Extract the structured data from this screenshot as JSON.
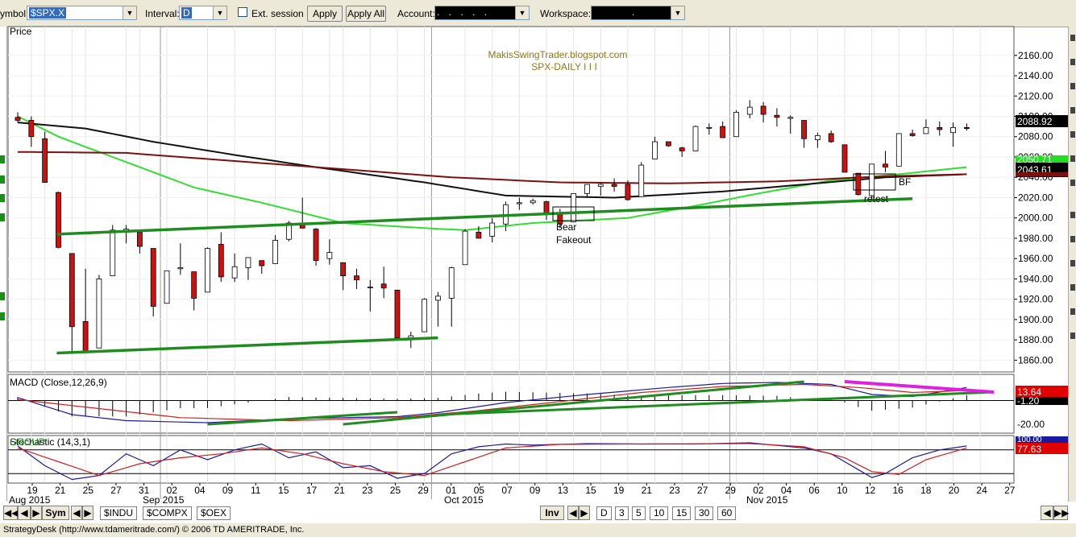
{
  "toolbar": {
    "symbol_label": "ymbol:",
    "symbol_value": "$SPX.X",
    "interval_label": "Interval:",
    "interval_value": "D",
    "ext_session_label": "Ext. session",
    "apply_label": "Apply",
    "apply_all_label": "Apply All",
    "account_label": "Account:",
    "account_value": ". . . . .",
    "workspace_label": "Workspace:",
    "workspace_value": "."
  },
  "chart": {
    "price_panel_title": "Price",
    "watermark_line1": "MakisSwingTrader.blogspot.com",
    "watermark_line2": "SPX-DAILY  I I I",
    "annotation_bear": "Bear",
    "annotation_fakeout": "Fakeout",
    "annotation_bf": "BF",
    "annotation_retest": "retest",
    "last_price": "2088.92",
    "ma_price": "2043.61",
    "ma_price_hidden": "2050.71",
    "macd_title": "MACD (Close,12,26,9)",
    "macd_value1": "13.64",
    "macd_value2": "-1.20",
    "macd_scale_low": "-20.00",
    "stoch_title": "Stochastic (14,3,1)",
    "stoch_overlap": "GROUP",
    "stoch_value1": "100.00",
    "stoch_value2": "77.63",
    "colors": {
      "sma_short": "#33dd33",
      "sma_long": "#111111",
      "ema": "#7a1010",
      "trend": "#1e8c1e",
      "divergence": "#e020e0",
      "macd": "#1a1aa0",
      "signal": "#cc2020",
      "candle_up": "#ffffff",
      "candle_down": "#cc1111",
      "watermark": "#8a7b1a"
    }
  },
  "chart_data": {
    "type": "line",
    "title": "SPX-DAILY",
    "dates": [
      "2015-08-18",
      "2015-08-19",
      "2015-08-20",
      "2015-08-21",
      "2015-08-24",
      "2015-08-25",
      "2015-08-26",
      "2015-08-27",
      "2015-08-28",
      "2015-08-31",
      "2015-09-01",
      "2015-09-02",
      "2015-09-03",
      "2015-09-04",
      "2015-09-08",
      "2015-09-09",
      "2015-09-10",
      "2015-09-11",
      "2015-09-14",
      "2015-09-15",
      "2015-09-16",
      "2015-09-17",
      "2015-09-18",
      "2015-09-21",
      "2015-09-22",
      "2015-09-23",
      "2015-09-24",
      "2015-09-25",
      "2015-09-28",
      "2015-09-29",
      "2015-09-30",
      "2015-10-01",
      "2015-10-02",
      "2015-10-05",
      "2015-10-06",
      "2015-10-07",
      "2015-10-08",
      "2015-10-09",
      "2015-10-12",
      "2015-10-13",
      "2015-10-14",
      "2015-10-15",
      "2015-10-16",
      "2015-10-19",
      "2015-10-20",
      "2015-10-21",
      "2015-10-22",
      "2015-10-23",
      "2015-10-26",
      "2015-10-27",
      "2015-10-28",
      "2015-10-29",
      "2015-10-30",
      "2015-11-02",
      "2015-11-03",
      "2015-11-04",
      "2015-11-05",
      "2015-11-06",
      "2015-11-09",
      "2015-11-10",
      "2015-11-11",
      "2015-11-12",
      "2015-11-13",
      "2015-11-16",
      "2015-11-17",
      "2015-11-18",
      "2015-11-19",
      "2015-11-20",
      "2015-11-23",
      "2015-11-24",
      "2015-11-25"
    ],
    "ohlc": [
      [
        2099,
        2104,
        2094,
        2096
      ],
      [
        2096,
        2100,
        2070,
        2080
      ],
      [
        2078,
        2085,
        2035,
        2035
      ],
      [
        2025,
        2026,
        1970,
        1971
      ],
      [
        1965,
        1965,
        1867,
        1893
      ],
      [
        1898,
        1950,
        1867,
        1868
      ],
      [
        1872,
        1944,
        1872,
        1940
      ],
      [
        1943,
        1993,
        1943,
        1988
      ],
      [
        1986,
        1993,
        1975,
        1989
      ],
      [
        1986,
        1988,
        1965,
        1972
      ],
      [
        1970,
        1970,
        1903,
        1913
      ],
      [
        1916,
        1948,
        1916,
        1948
      ],
      [
        1950,
        1975,
        1944,
        1951
      ],
      [
        1947,
        1947,
        1909,
        1921
      ],
      [
        1927,
        1971,
        1927,
        1970
      ],
      [
        1974,
        1986,
        1937,
        1942
      ],
      [
        1941,
        1965,
        1937,
        1952
      ],
      [
        1951,
        1961,
        1939,
        1961
      ],
      [
        1958,
        1958,
        1945,
        1953
      ],
      [
        1955,
        1983,
        1955,
        1978
      ],
      [
        1979,
        1997,
        1977,
        1995
      ],
      [
        1995,
        2020,
        1990,
        1990
      ],
      [
        1989,
        1990,
        1953,
        1958
      ],
      [
        1960,
        1979,
        1954,
        1966
      ],
      [
        1956,
        1956,
        1929,
        1943
      ],
      [
        1943,
        1950,
        1930,
        1939
      ],
      [
        1932,
        1939,
        1908,
        1932
      ],
      [
        1935,
        1952,
        1921,
        1931
      ],
      [
        1929,
        1929,
        1880,
        1882
      ],
      [
        1882,
        1888,
        1872,
        1884
      ],
      [
        1888,
        1921,
        1888,
        1920
      ],
      [
        1919,
        1927,
        1893,
        1923
      ],
      [
        1921,
        1952,
        1893,
        1951
      ],
      [
        1954,
        1989,
        1954,
        1987
      ],
      [
        1986,
        1992,
        1980,
        1980
      ],
      [
        1982,
        2000,
        1976,
        1995
      ],
      [
        1994,
        2016,
        1987,
        2013
      ],
      [
        2014,
        2020,
        2008,
        2015
      ],
      [
        2015,
        2019,
        2013,
        2017
      ],
      [
        2016,
        2017,
        1998,
        2004
      ],
      [
        2004,
        2009,
        1990,
        1994
      ],
      [
        1996,
        2024,
        1996,
        2024
      ],
      [
        2024,
        2033,
        2020,
        2033
      ],
      [
        2031,
        2034,
        2022,
        2033
      ],
      [
        2033,
        2039,
        2026,
        2031
      ],
      [
        2033,
        2037,
        2017,
        2018
      ],
      [
        2021,
        2055,
        2021,
        2052
      ],
      [
        2058,
        2080,
        2058,
        2075
      ],
      [
        2075,
        2075,
        2070,
        2071
      ],
      [
        2069,
        2070,
        2060,
        2066
      ],
      [
        2066,
        2091,
        2066,
        2090
      ],
      [
        2089,
        2093,
        2082,
        2089
      ],
      [
        2090,
        2095,
        2079,
        2079
      ],
      [
        2080,
        2106,
        2080,
        2104
      ],
      [
        2102,
        2116,
        2098,
        2109
      ],
      [
        2110,
        2114,
        2094,
        2102
      ],
      [
        2101,
        2108,
        2090,
        2099
      ],
      [
        2098,
        2101,
        2083,
        2099
      ],
      [
        2096,
        2096,
        2069,
        2078
      ],
      [
        2077,
        2084,
        2069,
        2081
      ],
      [
        2083,
        2086,
        2074,
        2075
      ],
      [
        2072,
        2072,
        2045,
        2045
      ],
      [
        2044,
        2044,
        2022,
        2023
      ],
      [
        2022,
        2053,
        2019,
        2053
      ],
      [
        2053,
        2066,
        2045,
        2050
      ],
      [
        2051,
        2083,
        2051,
        2083
      ],
      [
        2083,
        2087,
        2080,
        2081
      ],
      [
        2083,
        2097,
        2083,
        2089
      ],
      [
        2089,
        2095,
        2081,
        2087
      ],
      [
        2084,
        2094,
        2070,
        2089
      ],
      [
        2089,
        2093,
        2086,
        2088
      ]
    ],
    "price_axis": {
      "min": 1850,
      "max": 2170,
      "ticks": [
        1860,
        1880,
        1900,
        1920,
        1940,
        1960,
        1980,
        2000,
        2020,
        2040,
        2060,
        2080,
        2100,
        2120,
        2140,
        2160
      ]
    },
    "x_tick_labels": [
      "19",
      "21",
      "25",
      "27",
      "31",
      "02",
      "04",
      "09",
      "11",
      "15",
      "17",
      "21",
      "23",
      "25",
      "29",
      "01",
      "05",
      "07",
      "09",
      "13",
      "15",
      "19",
      "21",
      "23",
      "27",
      "29",
      "02",
      "04",
      "06",
      "10",
      "12",
      "16",
      "18",
      "20",
      "24",
      "27"
    ],
    "month_labels": [
      "Aug 2015",
      "Sep 2015",
      "Oct 2015",
      "Nov 2015"
    ],
    "series": [
      {
        "name": "SMA short",
        "color": "#33dd33",
        "values_at": [
          [
            0,
            2100
          ],
          [
            3,
            2080
          ],
          [
            8,
            2055
          ],
          [
            13,
            2030
          ],
          [
            18,
            2015
          ],
          [
            24,
            1995
          ],
          [
            30,
            1990
          ],
          [
            33,
            1988
          ],
          [
            38,
            1995
          ],
          [
            45,
            2000
          ],
          [
            50,
            2012
          ],
          [
            55,
            2025
          ],
          [
            60,
            2037
          ],
          [
            65,
            2043
          ],
          [
            70,
            2050
          ]
        ]
      },
      {
        "name": "SMA long",
        "color": "#111111",
        "values_at": [
          [
            0,
            2094
          ],
          [
            5,
            2088
          ],
          [
            10,
            2075
          ],
          [
            16,
            2062
          ],
          [
            22,
            2050
          ],
          [
            30,
            2035
          ],
          [
            36,
            2022
          ],
          [
            44,
            2020
          ],
          [
            52,
            2026
          ],
          [
            58,
            2033
          ],
          [
            64,
            2040
          ],
          [
            70,
            2043
          ]
        ]
      },
      {
        "name": "EMA",
        "color": "#7a1010",
        "values_at": [
          [
            0,
            2065
          ],
          [
            8,
            2064
          ],
          [
            16,
            2056
          ],
          [
            24,
            2048
          ],
          [
            32,
            2040
          ],
          [
            40,
            2035
          ],
          [
            48,
            2034
          ],
          [
            56,
            2036
          ],
          [
            64,
            2041
          ],
          [
            70,
            2043
          ]
        ]
      }
    ],
    "trendlines": [
      {
        "from": [
          3,
          1984
        ],
        "to": [
          66,
          2019
        ]
      },
      {
        "from": [
          3,
          1867
        ],
        "to": [
          31,
          1882
        ]
      }
    ],
    "macd": {
      "axis": {
        "min": -25,
        "max": 25
      }
    },
    "stochastic": {
      "axis": {
        "min": 0,
        "max": 100
      },
      "levels": [
        80,
        20
      ]
    }
  },
  "bottom_bar": {
    "sym": "Sym",
    "tabs": [
      "$INDU",
      "$COMPX",
      "$OEX"
    ],
    "inv": "Inv",
    "intervals": [
      "D",
      "3",
      "5",
      "10",
      "15",
      "30",
      "60"
    ]
  },
  "status_text": "StrategyDesk (http://www.tdameritrade.com/) © 2006 TD AMERITRADE, Inc."
}
